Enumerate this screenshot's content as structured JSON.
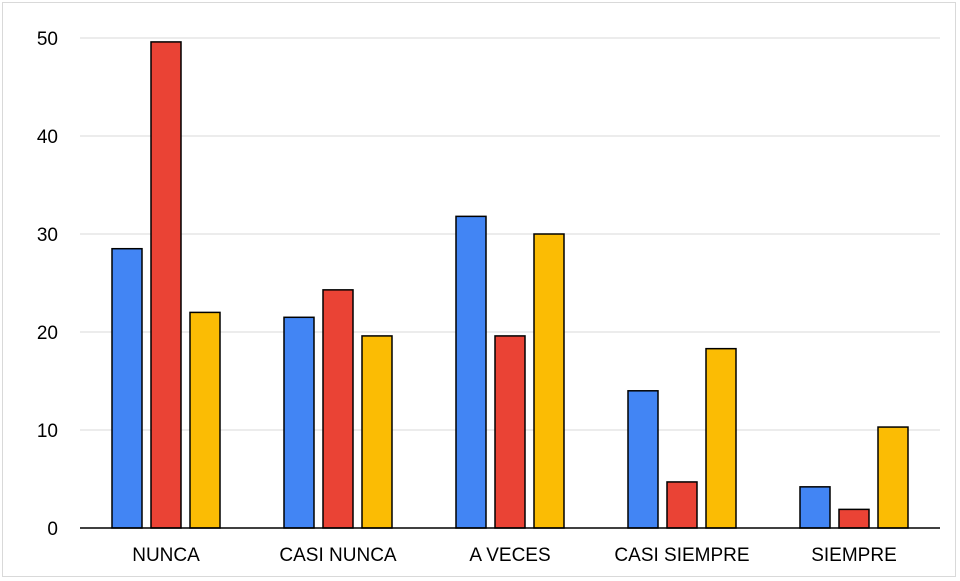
{
  "chart_data": {
    "type": "bar",
    "categories": [
      "NUNCA",
      "CASI NUNCA",
      "A VECES",
      "CASI SIEMPRE",
      "SIEMPRE"
    ],
    "series": [
      {
        "values": [
          28.5,
          21.5,
          31.8,
          14.0,
          4.2
        ],
        "color": "#4285f4"
      },
      {
        "values": [
          49.6,
          24.3,
          19.6,
          4.7,
          1.9
        ],
        "color": "#ea4335"
      },
      {
        "values": [
          22.0,
          19.6,
          30.0,
          18.3,
          10.3
        ],
        "color": "#fbbc04"
      }
    ],
    "ylim": [
      0,
      50
    ],
    "yticks": [
      0,
      10,
      20,
      30,
      40,
      50
    ],
    "grid": true,
    "legend": "none",
    "title": "",
    "xlabel": "",
    "ylabel": ""
  }
}
